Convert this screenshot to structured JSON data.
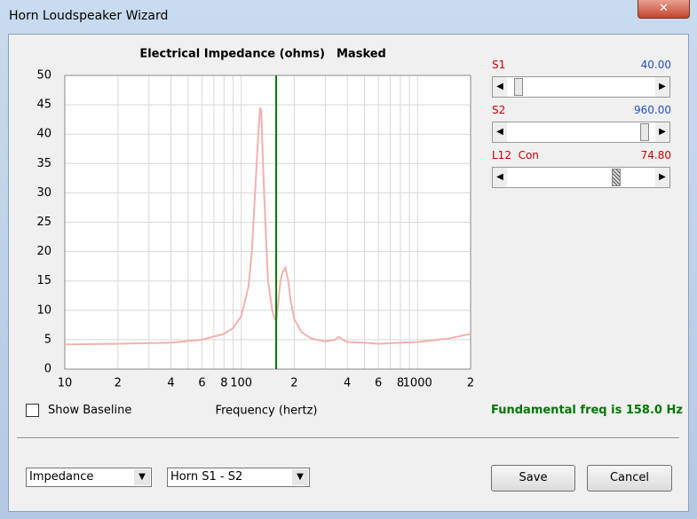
{
  "window": {
    "title": "Horn Loudspeaker Wizard"
  },
  "chart_data": {
    "type": "line",
    "title": "Electrical Impedance (ohms)",
    "subtitle": "Masked",
    "x_label": "Frequency (hertz)",
    "x_scale": "log",
    "xlim": [
      10,
      2000
    ],
    "xticks": [
      10,
      {
        "value": 20,
        "label": "2"
      },
      {
        "value": 40,
        "label": "4"
      },
      {
        "value": 60,
        "label": "6"
      },
      {
        "value": 80,
        "label": "8"
      },
      100,
      {
        "value": 200,
        "label": "2"
      },
      {
        "value": 400,
        "label": "4"
      },
      {
        "value": 600,
        "label": "6"
      },
      {
        "value": 800,
        "label": "8"
      },
      1000,
      {
        "value": 2000,
        "label": "2"
      }
    ],
    "xminor": [
      30,
      50,
      70,
      90,
      300,
      500,
      700,
      900
    ],
    "ylim": [
      0,
      50
    ],
    "yticks": [
      0,
      5,
      10,
      15,
      20,
      25,
      30,
      35,
      40,
      45,
      50
    ],
    "grid": true,
    "color": "#f4b0b0",
    "x": [
      10,
      20,
      40,
      60,
      80,
      90,
      100,
      110,
      115,
      120,
      125,
      128,
      130,
      133,
      137,
      142,
      150,
      155,
      158,
      162,
      167,
      172,
      178,
      185,
      190,
      200,
      220,
      250,
      300,
      340,
      358,
      375,
      400,
      500,
      600,
      800,
      1000,
      1500,
      2000
    ],
    "values": [
      4.2,
      4.3,
      4.5,
      5,
      6,
      7,
      9,
      14,
      20,
      30,
      40,
      44.5,
      44,
      35,
      25,
      15,
      10,
      8.5,
      8.3,
      11,
      15,
      16.5,
      17.3,
      15,
      12,
      8.5,
      6.3,
      5.2,
      4.7,
      5,
      5.5,
      5,
      4.6,
      4.5,
      4.3,
      4.5,
      4.6,
      5.2,
      6
    ],
    "marker": {
      "x": 158,
      "color": "#007700"
    }
  },
  "controls": {
    "show_baseline": "Show Baseline",
    "fundamental": "Fundamental freq is 158.0 Hz",
    "sliders": [
      {
        "label": "S1",
        "value": "40.00"
      },
      {
        "label": "S2",
        "value": "960.00"
      },
      {
        "label": "L12  Con",
        "value": "74.80"
      }
    ],
    "dropdowns": [
      "Impedance",
      "Horn S1 - S2"
    ],
    "buttons": [
      "Save",
      "Cancel"
    ]
  }
}
